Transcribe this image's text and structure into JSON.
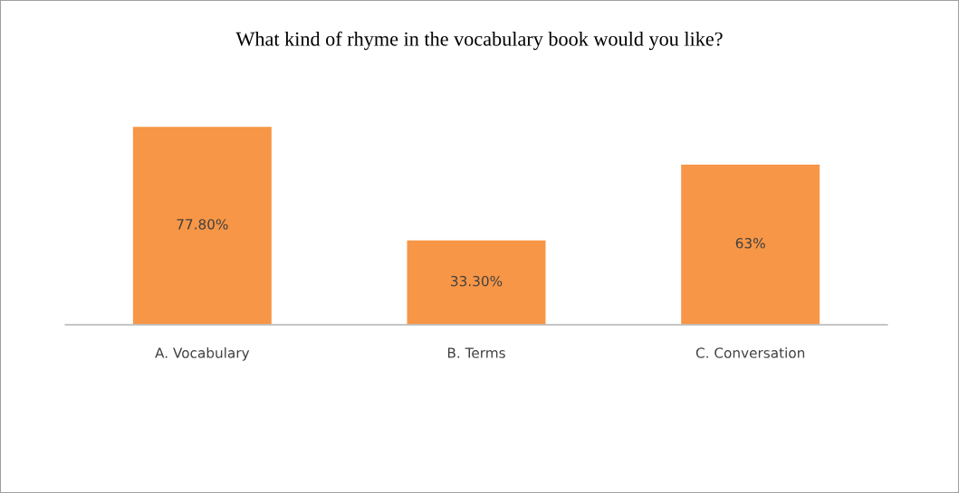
{
  "chart_data": {
    "type": "bar",
    "title": "What kind of rhyme in the vocabulary book would you like?",
    "categories": [
      "A. Vocabulary",
      "B. Terms",
      "C. Conversation"
    ],
    "values": [
      77.8,
      33.3,
      63
    ],
    "value_labels": [
      "77.80%",
      "33.30%",
      "63%"
    ],
    "color": "#f79646",
    "grid": false,
    "legend": false
  }
}
